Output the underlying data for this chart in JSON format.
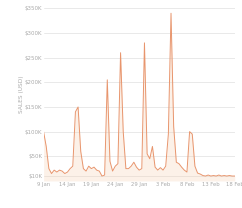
{
  "title": "",
  "ylabel": "SALES (USD)",
  "xlabel": "",
  "background_color": "#ffffff",
  "line_color": "#e8956d",
  "fill_color": "#f5cba7",
  "grid_color": "#d8d8d8",
  "label_color": "#aaaaaa",
  "ylim": [
    0,
    350000
  ],
  "yticks": [
    10000,
    50000,
    100000,
    150000,
    200000,
    250000,
    300000,
    350000
  ],
  "ytick_labels": [
    "$10K",
    "$50K",
    "$100K",
    "$150K",
    "$200K",
    "$250K",
    "$300K",
    "$350K"
  ],
  "xtick_labels": [
    "9 Jan",
    "14 Jan",
    "19 Jan",
    "24 Jan",
    "29 Jan",
    "3 Feb",
    "8 Feb",
    "13 Feb",
    "18 Feb"
  ],
  "xtick_positions": [
    0,
    9,
    18,
    27,
    36,
    45,
    54,
    63,
    72
  ],
  "n_points": 73,
  "y_data": [
    100000,
    70000,
    25000,
    15000,
    22000,
    18000,
    22000,
    20000,
    15000,
    18000,
    25000,
    30000,
    140000,
    150000,
    60000,
    25000,
    20000,
    30000,
    25000,
    28000,
    22000,
    20000,
    10000,
    12000,
    205000,
    40000,
    20000,
    30000,
    35000,
    260000,
    100000,
    25000,
    25000,
    30000,
    38000,
    28000,
    22000,
    25000,
    280000,
    55000,
    45000,
    70000,
    28000,
    22000,
    27000,
    22000,
    30000,
    95000,
    340000,
    110000,
    38000,
    35000,
    28000,
    22000,
    18000,
    100000,
    95000,
    30000,
    16000,
    14000,
    11000,
    10000,
    12000,
    10000,
    11000,
    10000,
    12000,
    10000,
    11000,
    10000,
    11000,
    10000,
    10000
  ],
  "figsize": [
    2.42,
    2.08
  ],
  "dpi": 100
}
